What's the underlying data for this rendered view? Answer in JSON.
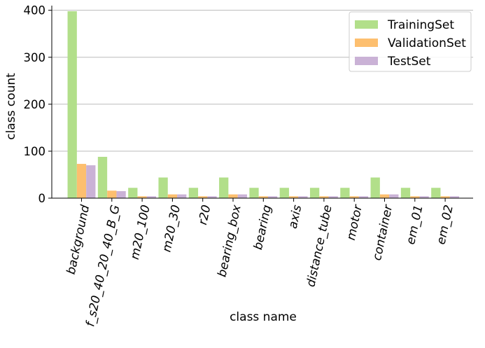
{
  "chart_data": {
    "type": "bar",
    "title": "",
    "xlabel": "class name",
    "ylabel": "class count",
    "ylim": [
      0,
      410
    ],
    "yticks": [
      0,
      100,
      200,
      300,
      400
    ],
    "grid": "horizontal",
    "legend_position": "top-right",
    "categories": [
      "background",
      "f_s20_40_20_40_B_G",
      "m20_100",
      "m20_30",
      "r20",
      "bearing_box",
      "bearing",
      "axis",
      "distance_tube",
      "motor",
      "container",
      "em_01",
      "em_02"
    ],
    "series": [
      {
        "name": "TrainingSet",
        "color": "#b2df8a",
        "values": [
          398,
          88,
          22,
          44,
          22,
          44,
          22,
          22,
          22,
          22,
          44,
          22,
          22
        ]
      },
      {
        "name": "ValidationSet",
        "color": "#fdbf6f",
        "values": [
          73,
          16,
          4,
          8,
          4,
          8,
          4,
          4,
          4,
          4,
          8,
          4,
          4
        ]
      },
      {
        "name": "TestSet",
        "color": "#cab2d6",
        "values": [
          70,
          15,
          4,
          8,
          4,
          8,
          4,
          4,
          4,
          4,
          8,
          4,
          4
        ]
      }
    ]
  }
}
